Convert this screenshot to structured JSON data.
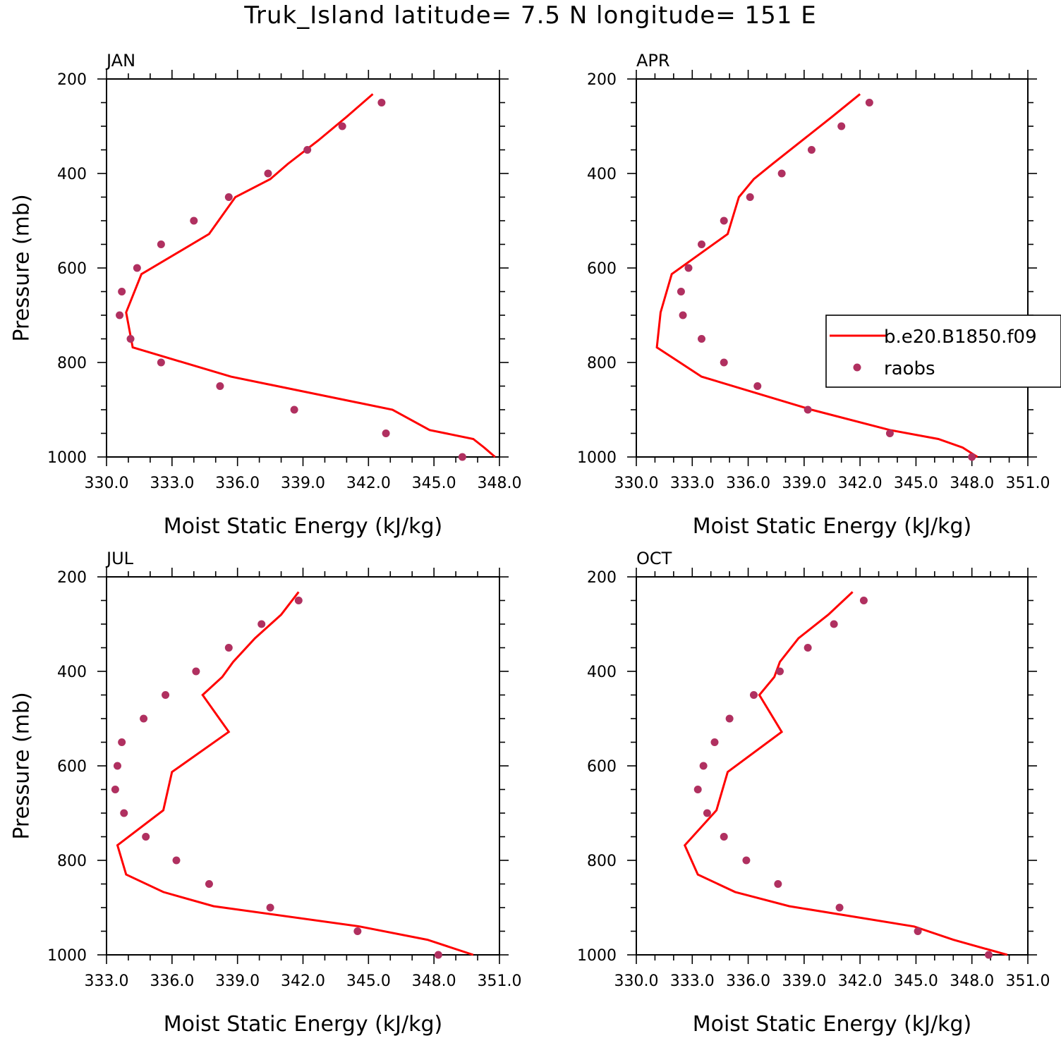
{
  "title": "Truk_Island  latitude= 7.5 N longitude= 151 E",
  "colors": {
    "model": "#ff0000",
    "obs": "#b03060"
  },
  "chart_data": [
    {
      "type": "line",
      "label": "JAN",
      "xlabel": "Moist Static Energy (kJ/kg)",
      "ylabel": "Pressure (mb)",
      "xlim": [
        330.0,
        348.0
      ],
      "ylim": [
        200,
        1000
      ],
      "y_inverted": true,
      "xticks": [
        "330.0",
        "333.0",
        "336.0",
        "339.0",
        "342.0",
        "345.0",
        "348.0"
      ],
      "yticks": [
        "200",
        "400",
        "600",
        "800",
        "1000"
      ],
      "series": [
        {
          "name": "b.e20.B1850.f09",
          "kind": "line",
          "x": [
            342.2,
            341.0,
            339.7,
            338.3,
            337.5,
            335.9,
            334.7,
            331.6,
            330.9,
            331.2,
            335.7,
            343.1,
            344.8,
            346.8,
            347.3,
            347.8
          ],
          "y": [
            232,
            280,
            330,
            380,
            412,
            450,
            528,
            613,
            694,
            768,
            830,
            900,
            943,
            962,
            980,
            1000
          ]
        },
        {
          "name": "raobs",
          "kind": "scatter",
          "x": [
            342.6,
            340.8,
            339.2,
            337.4,
            335.6,
            334.0,
            332.5,
            331.4,
            330.7,
            330.6,
            331.1,
            332.5,
            335.2,
            338.6,
            342.8,
            346.3
          ],
          "y": [
            250,
            300,
            350,
            400,
            450,
            500,
            550,
            600,
            650,
            700,
            750,
            800,
            850,
            900,
            950,
            1000
          ]
        }
      ]
    },
    {
      "type": "line",
      "label": "APR",
      "xlabel": "Moist Static Energy (kJ/kg)",
      "ylabel": "",
      "xlim": [
        330.0,
        351.0
      ],
      "ylim": [
        200,
        1000
      ],
      "y_inverted": true,
      "xticks": [
        "330.0",
        "333.0",
        "336.0",
        "339.0",
        "342.0",
        "345.0",
        "348.0",
        "351.0"
      ],
      "yticks": [
        "200",
        "400",
        "600",
        "800",
        "1000"
      ],
      "legend": {
        "position": "right",
        "entries": [
          "b.e20.B1850.f09",
          "raobs"
        ]
      },
      "series": [
        {
          "name": "b.e20.B1850.f09",
          "kind": "line",
          "x": [
            342.0,
            340.5,
            338.9,
            337.3,
            336.3,
            335.5,
            334.9,
            331.9,
            331.3,
            331.1,
            333.5,
            339.4,
            343.6,
            346.2,
            347.5,
            348.3
          ],
          "y": [
            232,
            280,
            330,
            380,
            412,
            450,
            528,
            613,
            694,
            768,
            830,
            900,
            943,
            962,
            980,
            1000
          ]
        },
        {
          "name": "raobs",
          "kind": "scatter",
          "x": [
            342.5,
            341.0,
            339.4,
            337.8,
            336.1,
            334.7,
            333.5,
            332.8,
            332.4,
            332.5,
            333.5,
            334.7,
            336.5,
            339.2,
            343.6,
            348.0
          ],
          "y": [
            250,
            300,
            350,
            400,
            450,
            500,
            550,
            600,
            650,
            700,
            750,
            800,
            850,
            900,
            950,
            1000
          ]
        }
      ]
    },
    {
      "type": "line",
      "label": "JUL",
      "xlabel": "Moist Static Energy (kJ/kg)",
      "ylabel": "Pressure (mb)",
      "xlim": [
        333.0,
        351.0
      ],
      "ylim": [
        200,
        1000
      ],
      "y_inverted": true,
      "xticks": [
        "333.0",
        "336.0",
        "339.0",
        "342.0",
        "345.0",
        "348.0",
        "351.0"
      ],
      "yticks": [
        "200",
        "400",
        "600",
        "800",
        "1000"
      ],
      "series": [
        {
          "name": "b.e20.B1850.f09",
          "kind": "line",
          "x": [
            341.8,
            341.0,
            339.8,
            338.8,
            338.3,
            337.4,
            338.6,
            336.0,
            335.6,
            333.5,
            333.9,
            335.6,
            337.9,
            344.6,
            347.7,
            349.8
          ],
          "y": [
            232,
            280,
            330,
            380,
            412,
            450,
            528,
            613,
            694,
            768,
            830,
            867,
            897,
            940,
            968,
            1000
          ]
        },
        {
          "name": "raobs",
          "kind": "scatter",
          "x": [
            341.8,
            340.1,
            338.6,
            337.1,
            335.7,
            334.7,
            333.7,
            333.5,
            333.4,
            333.8,
            334.8,
            336.2,
            337.7,
            340.5,
            344.5,
            348.2
          ],
          "y": [
            250,
            300,
            350,
            400,
            450,
            500,
            550,
            600,
            650,
            700,
            750,
            800,
            850,
            900,
            950,
            1000
          ]
        }
      ]
    },
    {
      "type": "line",
      "label": "OCT",
      "xlabel": "Moist Static Energy (kJ/kg)",
      "ylabel": "",
      "xlim": [
        330.0,
        351.0
      ],
      "ylim": [
        200,
        1000
      ],
      "y_inverted": true,
      "xticks": [
        "330.0",
        "333.0",
        "336.0",
        "339.0",
        "342.0",
        "345.0",
        "348.0",
        "351.0"
      ],
      "yticks": [
        "200",
        "400",
        "600",
        "800",
        "1000"
      ],
      "series": [
        {
          "name": "b.e20.B1850.f09",
          "kind": "line",
          "x": [
            341.6,
            340.3,
            338.7,
            337.7,
            337.4,
            336.6,
            337.8,
            334.9,
            334.3,
            332.6,
            333.3,
            335.3,
            338.2,
            344.9,
            347.0,
            349.9
          ],
          "y": [
            232,
            280,
            330,
            380,
            412,
            450,
            528,
            613,
            694,
            768,
            830,
            867,
            897,
            940,
            968,
            1000
          ]
        },
        {
          "name": "raobs",
          "kind": "scatter",
          "x": [
            342.2,
            340.6,
            339.2,
            337.7,
            336.3,
            335.0,
            334.2,
            333.6,
            333.3,
            333.8,
            334.7,
            335.9,
            337.6,
            340.9,
            345.1,
            348.9
          ],
          "y": [
            250,
            300,
            350,
            400,
            450,
            500,
            550,
            600,
            650,
            700,
            750,
            800,
            850,
            900,
            950,
            1000
          ]
        }
      ]
    }
  ]
}
